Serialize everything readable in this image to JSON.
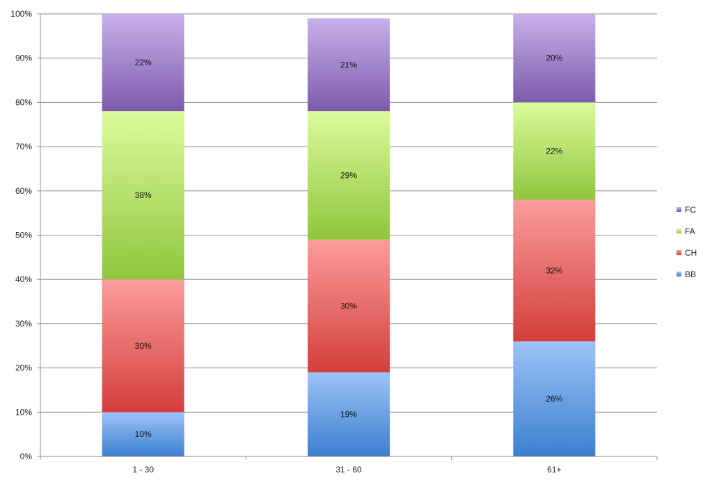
{
  "chart_data": {
    "type": "bar",
    "stacked": true,
    "categories": [
      "1 - 30",
      "31 - 60",
      "61+"
    ],
    "series": [
      {
        "name": "BB",
        "values": [
          10,
          19,
          26
        ],
        "labels": [
          "10%",
          "19%",
          "26%"
        ],
        "color_top": "#9cc4f7",
        "color_bottom": "#3c7fd0"
      },
      {
        "name": "CH",
        "values": [
          30,
          30,
          32
        ],
        "labels": [
          "30%",
          "30%",
          "32%"
        ],
        "color_top": "#fb9d9b",
        "color_bottom": "#d33e3c"
      },
      {
        "name": "FA",
        "values": [
          38,
          29,
          22
        ],
        "labels": [
          "38%",
          "29%",
          "22%"
        ],
        "color_top": "#dcfb9c",
        "color_bottom": "#8fc63c"
      },
      {
        "name": "FC",
        "values": [
          22,
          21,
          20
        ],
        "labels": [
          "22%",
          "21%",
          "20%"
        ],
        "color_top": "#c8b0ea",
        "color_bottom": "#7d5bac"
      }
    ],
    "y_ticks": [
      "0%",
      "10%",
      "20%",
      "30%",
      "40%",
      "50%",
      "60%",
      "70%",
      "80%",
      "90%",
      "100%"
    ],
    "ylim": [
      0,
      100
    ],
    "grid": true,
    "legend_position": "right",
    "legend_order": [
      "FC",
      "FA",
      "CH",
      "BB"
    ],
    "title": "",
    "xlabel": "",
    "ylabel": ""
  }
}
